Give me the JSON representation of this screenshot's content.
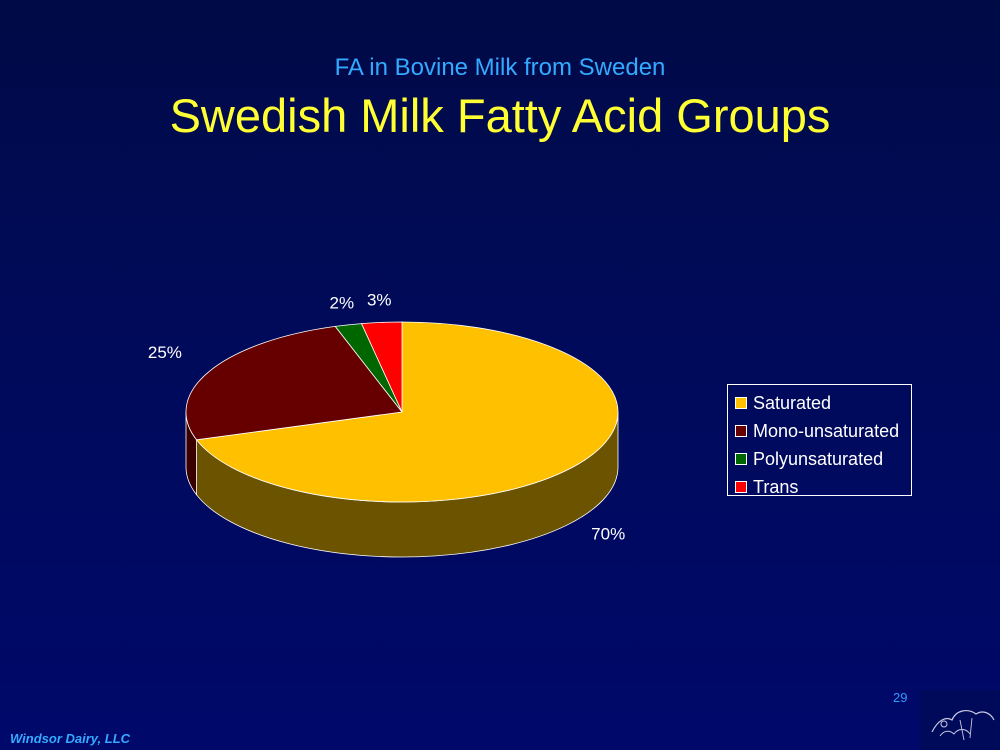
{
  "slide": {
    "subtitle": "FA in Bovine Milk from Sweden",
    "title": "Swedish Milk Fatty Acid Groups",
    "page_number": "29",
    "footer": "Windsor Dairy, LLC"
  },
  "chart_data": {
    "type": "pie",
    "title": "",
    "categories": [
      "Saturated",
      "Mono-unsaturated",
      "Polyunsaturated",
      "Trans"
    ],
    "values": [
      70,
      25,
      2,
      3
    ],
    "labels": [
      "70%",
      "25%",
      "2%",
      "3%"
    ],
    "colors": [
      "#ffc000",
      "#660000",
      "#006600",
      "#ff0000"
    ],
    "side_colors": [
      "#6b5300",
      "#3a0000",
      "#003300",
      "#8a0000"
    ],
    "legend": "right",
    "style": "3d"
  }
}
